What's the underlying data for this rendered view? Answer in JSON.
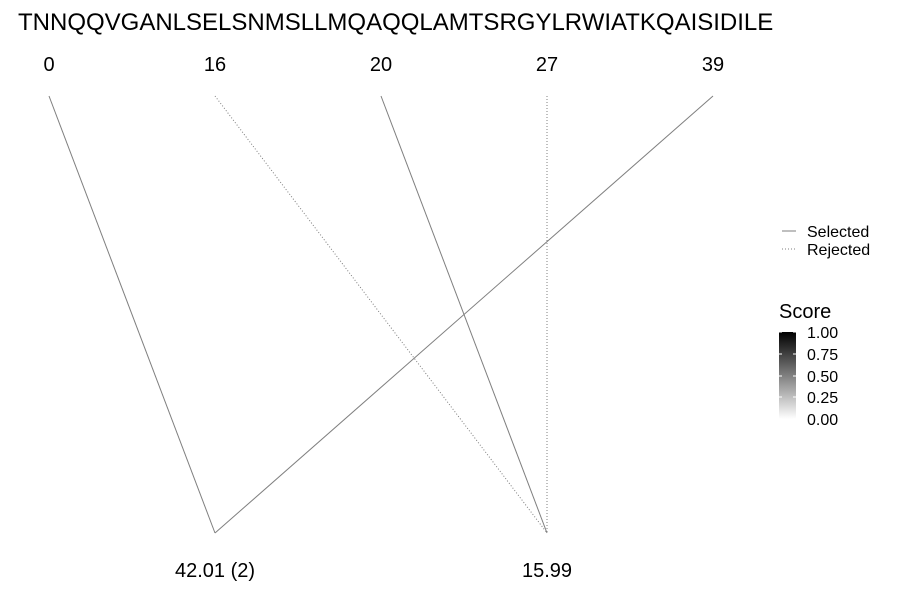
{
  "sequence": "TNNQQVGANLSELSNMSLLMQAQQLAMTSRGYLRWIATKQAISIDILE",
  "positions": [
    "0",
    "16",
    "20",
    "27",
    "39"
  ],
  "nodes": [
    "42.01 (2)",
    "15.99"
  ],
  "connections": [
    {
      "from": "0",
      "to": "42.01 (2)",
      "style": "solid"
    },
    {
      "from": "16",
      "to": "15.99",
      "style": "dotted"
    },
    {
      "from": "20",
      "to": "15.99",
      "style": "solid"
    },
    {
      "from": "27",
      "to": "15.99",
      "style": "dotted"
    },
    {
      "from": "39",
      "to": "42.01 (2)",
      "style": "solid"
    }
  ],
  "line_color": "#7f7f7f",
  "legend": {
    "line_types": [
      {
        "label": "Selected",
        "style": "solid"
      },
      {
        "label": "Rejected",
        "style": "dotted"
      }
    ],
    "score": {
      "title": "Score",
      "ticks": [
        "1.00",
        "0.75",
        "0.50",
        "0.25",
        "0.00"
      ],
      "gradient": [
        "#000000",
        "#ffffff"
      ]
    }
  }
}
